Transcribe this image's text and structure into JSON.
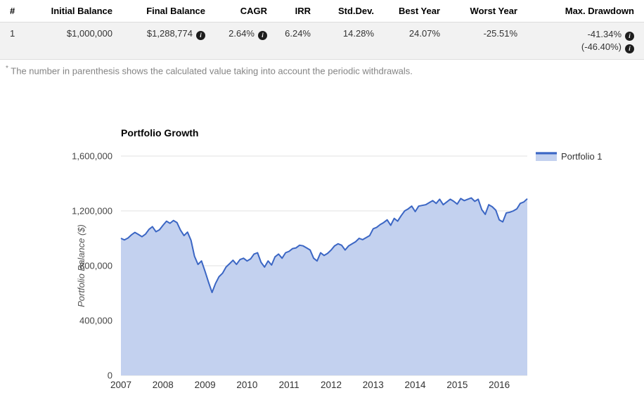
{
  "table": {
    "headers": [
      "#",
      "Initial Balance",
      "Final Balance",
      "CAGR",
      "IRR",
      "Std.Dev.",
      "Best Year",
      "Worst Year",
      "Max. Drawdown"
    ],
    "rows": [
      {
        "num": "1",
        "initial_balance": "$1,000,000",
        "final_balance": "$1,288,774",
        "cagr": "2.64%",
        "irr": "6.24%",
        "std_dev": "14.28%",
        "best_year": "24.07%",
        "worst_year": "-25.51%",
        "max_drawdown": "-41.34%",
        "max_drawdown_withdrawals": "(-46.40%)"
      }
    ]
  },
  "icons": {
    "info_glyph": "i"
  },
  "footnote": {
    "marker": "*",
    "text": "The number in parenthesis shows the calculated value taking into account the periodic withdrawals."
  },
  "chart_data": {
    "type": "area",
    "title": "Portfolio Growth",
    "xlabel": "",
    "ylabel": "Portfolio Balance ($)",
    "legend_position": "right",
    "grid": "horizontal",
    "ylim": [
      0,
      1600000
    ],
    "yticks": [
      0,
      400000,
      800000,
      1200000,
      1600000
    ],
    "ytick_labels": [
      "0",
      "400,000",
      "800,000",
      "1,200,000",
      "1,600,000"
    ],
    "xticks": [
      2007,
      2008,
      2009,
      2010,
      2011,
      2012,
      2013,
      2014,
      2015,
      2016
    ],
    "x_range": [
      2007,
      2016.6667
    ],
    "points_per_year": 12,
    "colors": {
      "line": "#3b66c4",
      "fill": "#c3d1ef"
    },
    "series": [
      {
        "name": "Portfolio 1",
        "values": [
          1000000,
          988000,
          1002000,
          1025000,
          1043000,
          1028000,
          1012000,
          1030000,
          1065000,
          1085000,
          1048000,
          1062000,
          1095000,
          1125000,
          1110000,
          1130000,
          1115000,
          1060000,
          1020000,
          1045000,
          985000,
          870000,
          810000,
          835000,
          760000,
          680000,
          605000,
          670000,
          720000,
          745000,
          790000,
          815000,
          840000,
          810000,
          845000,
          855000,
          835000,
          850000,
          885000,
          895000,
          825000,
          790000,
          835000,
          805000,
          865000,
          885000,
          855000,
          895000,
          905000,
          925000,
          930000,
          950000,
          945000,
          930000,
          915000,
          855000,
          835000,
          895000,
          875000,
          890000,
          915000,
          945000,
          960000,
          950000,
          915000,
          945000,
          960000,
          975000,
          1000000,
          990000,
          1005000,
          1020000,
          1070000,
          1080000,
          1100000,
          1115000,
          1135000,
          1095000,
          1145000,
          1125000,
          1165000,
          1200000,
          1215000,
          1235000,
          1195000,
          1235000,
          1240000,
          1245000,
          1260000,
          1275000,
          1255000,
          1285000,
          1245000,
          1265000,
          1285000,
          1270000,
          1250000,
          1290000,
          1275000,
          1285000,
          1295000,
          1270000,
          1285000,
          1210000,
          1175000,
          1245000,
          1230000,
          1205000,
          1135000,
          1120000,
          1185000,
          1190000,
          1200000,
          1215000,
          1255000,
          1265000,
          1288774
        ]
      }
    ]
  }
}
